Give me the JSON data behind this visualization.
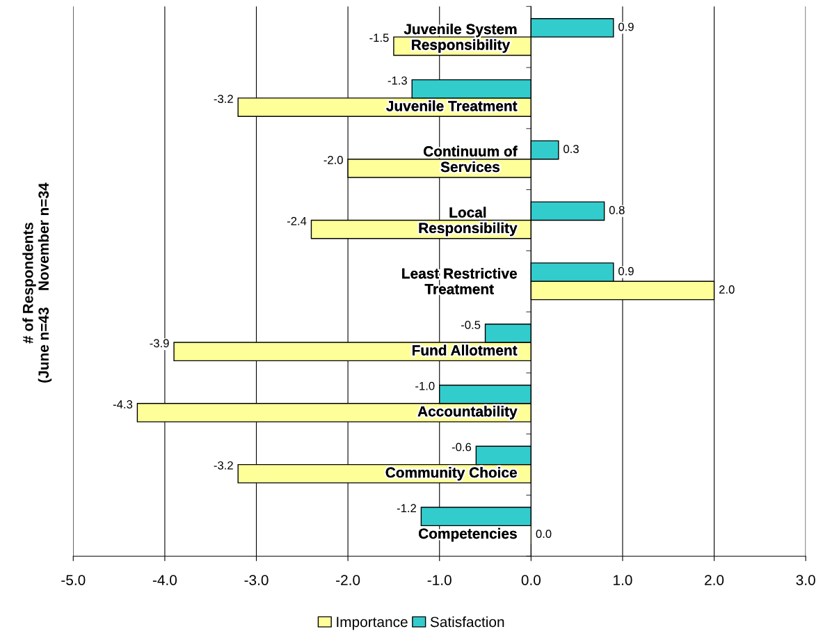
{
  "chart_data": {
    "type": "bar",
    "orientation": "horizontal",
    "categories": [
      "Juvenile System\nResponsibility",
      "Juvenile Treatment",
      "Continuum of\nServices",
      "Local\nResponsibility",
      "Least Restrictive\nTreatment",
      "Fund Allotment",
      "Accountability",
      "Community Choice",
      "Competencies"
    ],
    "ylabel": "# of Respondents\n(June n=43    November n=34",
    "series": [
      {
        "name": "Importance",
        "color": "#ffff99",
        "values": [
          -1.5,
          -3.2,
          -2.0,
          -2.4,
          2.0,
          -3.9,
          -4.3,
          -3.2,
          0.0
        ],
        "value_labels": [
          "-1.5",
          "-3.2",
          "-2.0",
          "-2.4",
          "2.0",
          "-3.9",
          "-4.3",
          "-3.2",
          "0.0"
        ]
      },
      {
        "name": "Satisfaction",
        "color": "#33cccc",
        "values": [
          0.9,
          -1.3,
          0.3,
          0.8,
          0.9,
          -0.5,
          -1.0,
          -0.6,
          -1.2
        ],
        "value_labels": [
          "0.9",
          "-1.3",
          "0.3",
          "0.8",
          "0.9",
          "-0.5",
          "-1.0",
          "-0.6",
          "-1.2"
        ]
      }
    ],
    "xlim": [
      -5,
      3
    ],
    "xticks": [
      {
        "value": -5,
        "label": "-5.0"
      },
      {
        "value": -4,
        "label": "-4.0"
      },
      {
        "value": -3,
        "label": "-3.0"
      },
      {
        "value": -2,
        "label": "-2.0"
      },
      {
        "value": -1,
        "label": "-1.0"
      },
      {
        "value": 0,
        "label": "0.0"
      },
      {
        "value": 1,
        "label": "1.0"
      },
      {
        "value": 2,
        "label": "2.0"
      },
      {
        "value": 3,
        "label": "3.0"
      }
    ],
    "grid": "x",
    "legend": "bottom"
  }
}
